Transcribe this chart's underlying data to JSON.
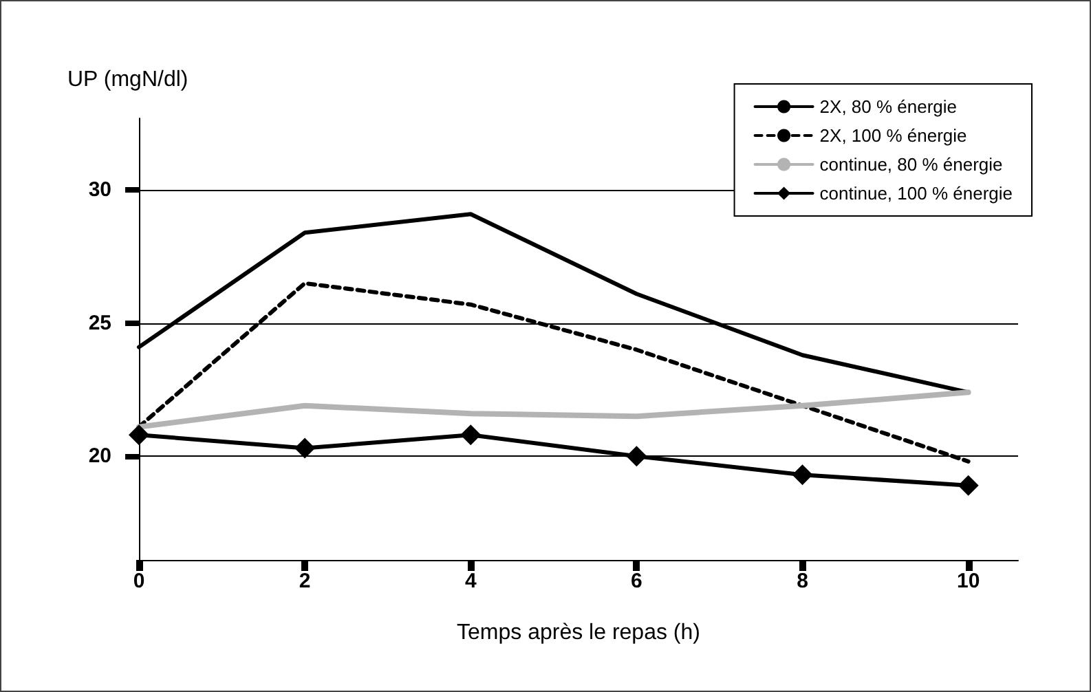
{
  "chart_data": {
    "type": "line",
    "ylabel": "UP (mgN/dl)",
    "xlabel": "Temps après le repas (h)",
    "x": [
      0,
      2,
      4,
      6,
      8,
      10
    ],
    "xlim": [
      0,
      10.6
    ],
    "xticks": [
      0,
      2,
      4,
      6,
      8,
      10
    ],
    "ylim": [
      16.1,
      32.7
    ],
    "yticks": [
      20,
      25,
      30
    ],
    "grid": "y",
    "legend": "top right",
    "series": [
      {
        "name": "2X, 80 % énergie",
        "color": "#000000",
        "line_style": "solid",
        "marker": "none",
        "values": [
          24.1,
          28.4,
          29.1,
          26.1,
          23.8,
          22.4
        ]
      },
      {
        "name": "2X, 100 % énergie",
        "color": "#000000",
        "line_style": "dashed",
        "marker": "none",
        "values": [
          21.1,
          26.5,
          25.7,
          24.0,
          21.9,
          19.8
        ]
      },
      {
        "name": "continue, 80 % énergie",
        "color": "#b3b3b3",
        "line_style": "solid",
        "marker": "none",
        "values": [
          21.1,
          21.9,
          21.6,
          21.5,
          21.9,
          22.4
        ]
      },
      {
        "name": "continue, 100 % énergie",
        "color": "#000000",
        "line_style": "solid",
        "marker": "diamond",
        "values": [
          20.8,
          20.3,
          20.8,
          20.0,
          19.3,
          18.9
        ]
      }
    ]
  }
}
